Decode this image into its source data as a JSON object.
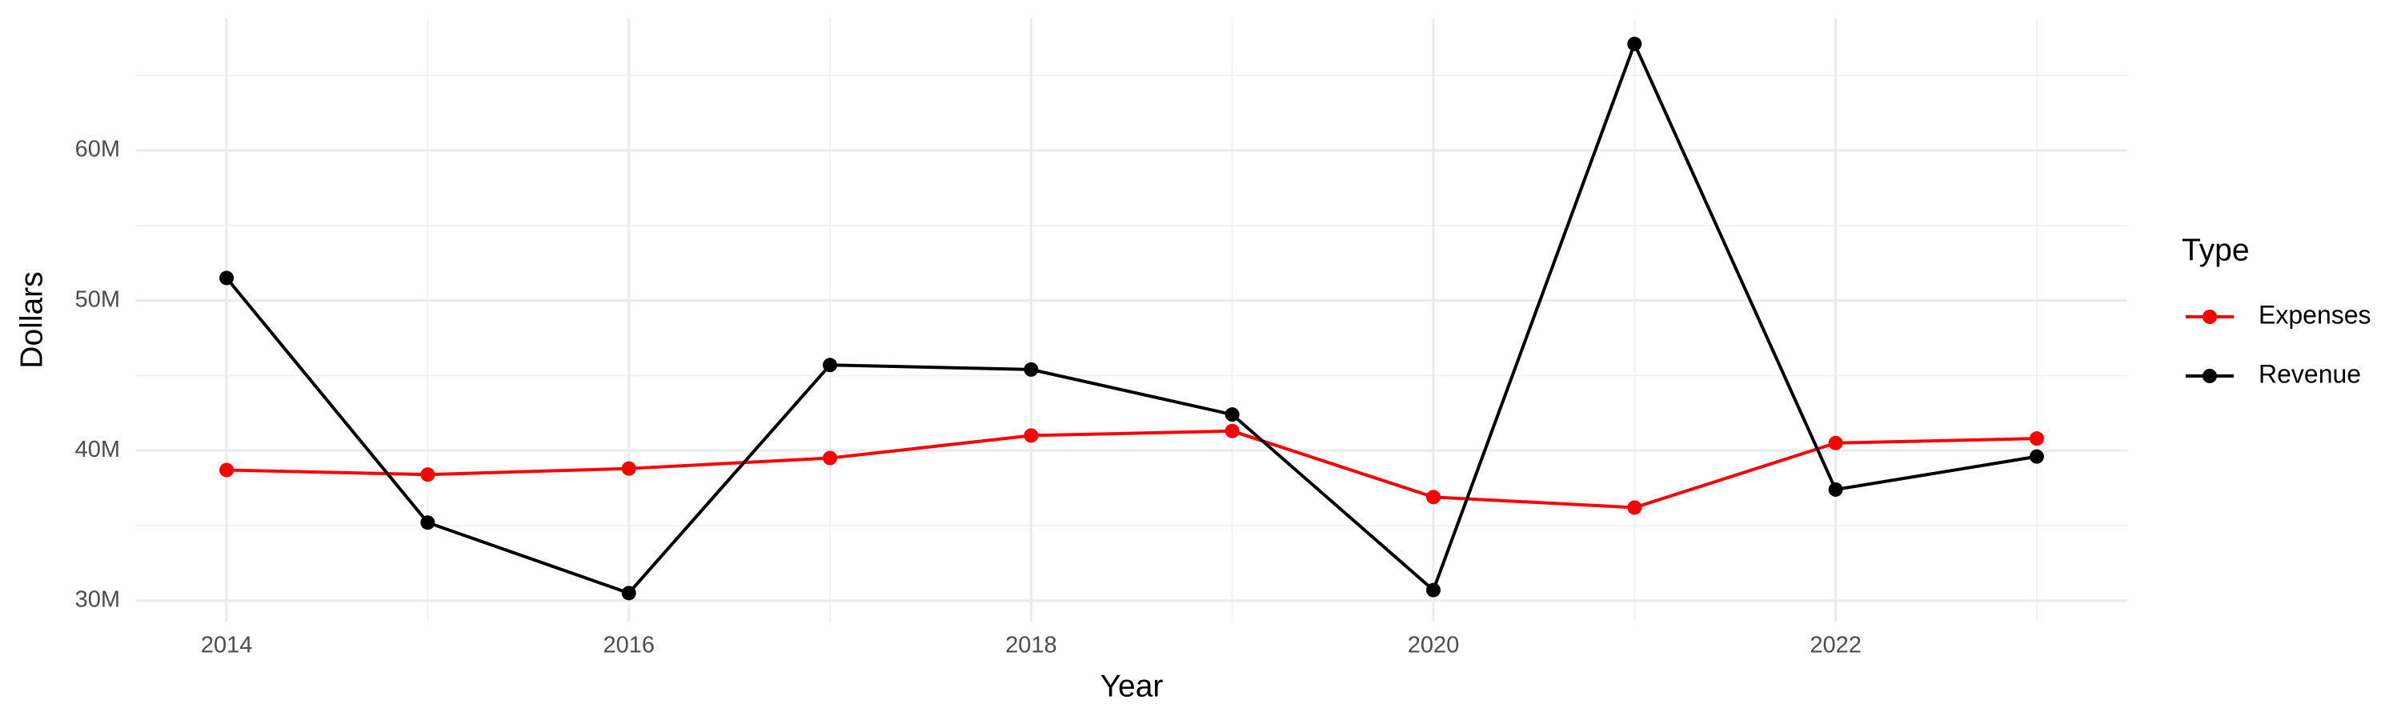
{
  "chart_data": {
    "type": "line",
    "x_label": "Year",
    "y_label": "Dollars",
    "legend_title": "Type",
    "x": [
      2014,
      2015,
      2016,
      2017,
      2018,
      2019,
      2020,
      2021,
      2022,
      2023
    ],
    "series": [
      {
        "name": "Expenses",
        "color": "#ff0000",
        "values": [
          38700000,
          38400000,
          38800000,
          39500000,
          41000000,
          41300000,
          36900000,
          36200000,
          40500000,
          40800000
        ]
      },
      {
        "name": "Revenue",
        "color": "#000000",
        "values": [
          51500000,
          35200000,
          30500000,
          45700000,
          45400000,
          42400000,
          30700000,
          67100000,
          37400000,
          39600000
        ]
      }
    ],
    "xlim": [
      2013.55,
      2023.45
    ],
    "xticks": [
      2014,
      2016,
      2018,
      2020,
      2022
    ],
    "ylim": [
      28600000,
      68800000
    ],
    "yticks": [
      {
        "value": 30000000,
        "label": "30M"
      },
      {
        "value": 40000000,
        "label": "40M"
      },
      {
        "value": 50000000,
        "label": "50M"
      },
      {
        "value": 60000000,
        "label": "60M"
      }
    ],
    "grid": true,
    "minor_grid": true,
    "legend_position": "right"
  }
}
